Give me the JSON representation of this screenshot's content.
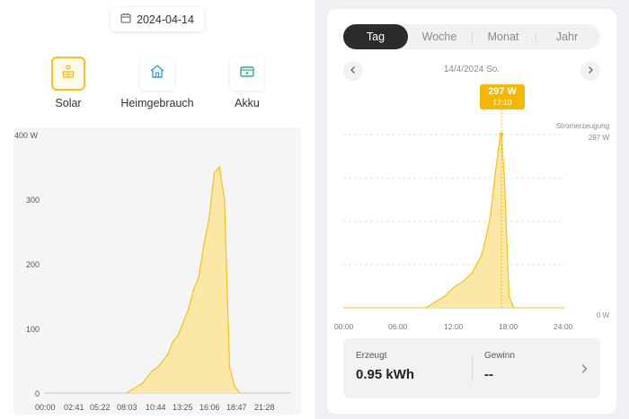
{
  "left": {
    "date": "2024-04-14",
    "icons": {
      "calendar": "calendar-icon",
      "solar": "solar-panel-icon",
      "home": "home-icon",
      "battery": "battery-icon"
    },
    "categories": [
      {
        "label": "Solar",
        "active": true
      },
      {
        "label": "Heimgebrauch",
        "active": false
      },
      {
        "label": "Akku",
        "active": false
      }
    ],
    "chart": {
      "y_ticks": [
        "400 W",
        "300",
        "200",
        "100",
        "0"
      ],
      "x_ticks": [
        "00:00",
        "02:41",
        "05:22",
        "08:03",
        "10:44",
        "13:25",
        "16:06",
        "18:47",
        "21:28"
      ]
    }
  },
  "right": {
    "tabs": [
      {
        "label": "Tag",
        "active": true
      },
      {
        "label": "Woche",
        "active": false
      },
      {
        "label": "Monat",
        "active": false
      },
      {
        "label": "Jahr",
        "active": false
      }
    ],
    "date_label": "14/4/2024 So.",
    "tooltip": {
      "value": "297 W",
      "time": "17:10"
    },
    "legend": {
      "title": "Stromerzeugung",
      "max": "297 W",
      "min": "0 W"
    },
    "x_ticks": [
      "00:00",
      "06:00",
      "12:00",
      "18:00",
      "24:00"
    ],
    "summary": {
      "produced_label": "Erzeugt",
      "produced_value": "0.95 kWh",
      "profit_label": "Gewinn",
      "profit_value": "--"
    }
  },
  "colors": {
    "accent": "#f5c11a",
    "fill": "#fce8a6",
    "tab_active": "#2b2b2b"
  },
  "chart_data": [
    {
      "type": "area",
      "title": "",
      "xlabel": "",
      "ylabel": "W",
      "ylim": [
        0,
        400
      ],
      "x": [
        "08:00",
        "08:30",
        "09:00",
        "09:30",
        "10:00",
        "10:30",
        "11:00",
        "11:30",
        "12:00",
        "12:30",
        "13:00",
        "13:30",
        "14:00",
        "14:30",
        "15:00",
        "15:30",
        "16:00",
        "16:30",
        "17:00",
        "17:30",
        "18:00",
        "18:30",
        "19:00"
      ],
      "series": [
        {
          "values": [
            0,
            5,
            10,
            15,
            25,
            35,
            40,
            50,
            60,
            80,
            90,
            110,
            130,
            160,
            180,
            230,
            270,
            340,
            350,
            300,
            40,
            10,
            0
          ]
        }
      ]
    },
    {
      "type": "area",
      "title": "",
      "xlabel": "",
      "ylabel": "W",
      "ylim": [
        0,
        297
      ],
      "x": [
        "09:00",
        "10:00",
        "11:00",
        "12:00",
        "13:00",
        "14:00",
        "15:00",
        "15:30",
        "16:00",
        "16:30",
        "17:00",
        "17:10",
        "17:30",
        "18:00",
        "18:30"
      ],
      "series": [
        {
          "name": "Stromerzeugung",
          "values": [
            0,
            10,
            20,
            35,
            45,
            60,
            90,
            120,
            160,
            230,
            290,
            297,
            220,
            20,
            0
          ]
        }
      ]
    }
  ]
}
